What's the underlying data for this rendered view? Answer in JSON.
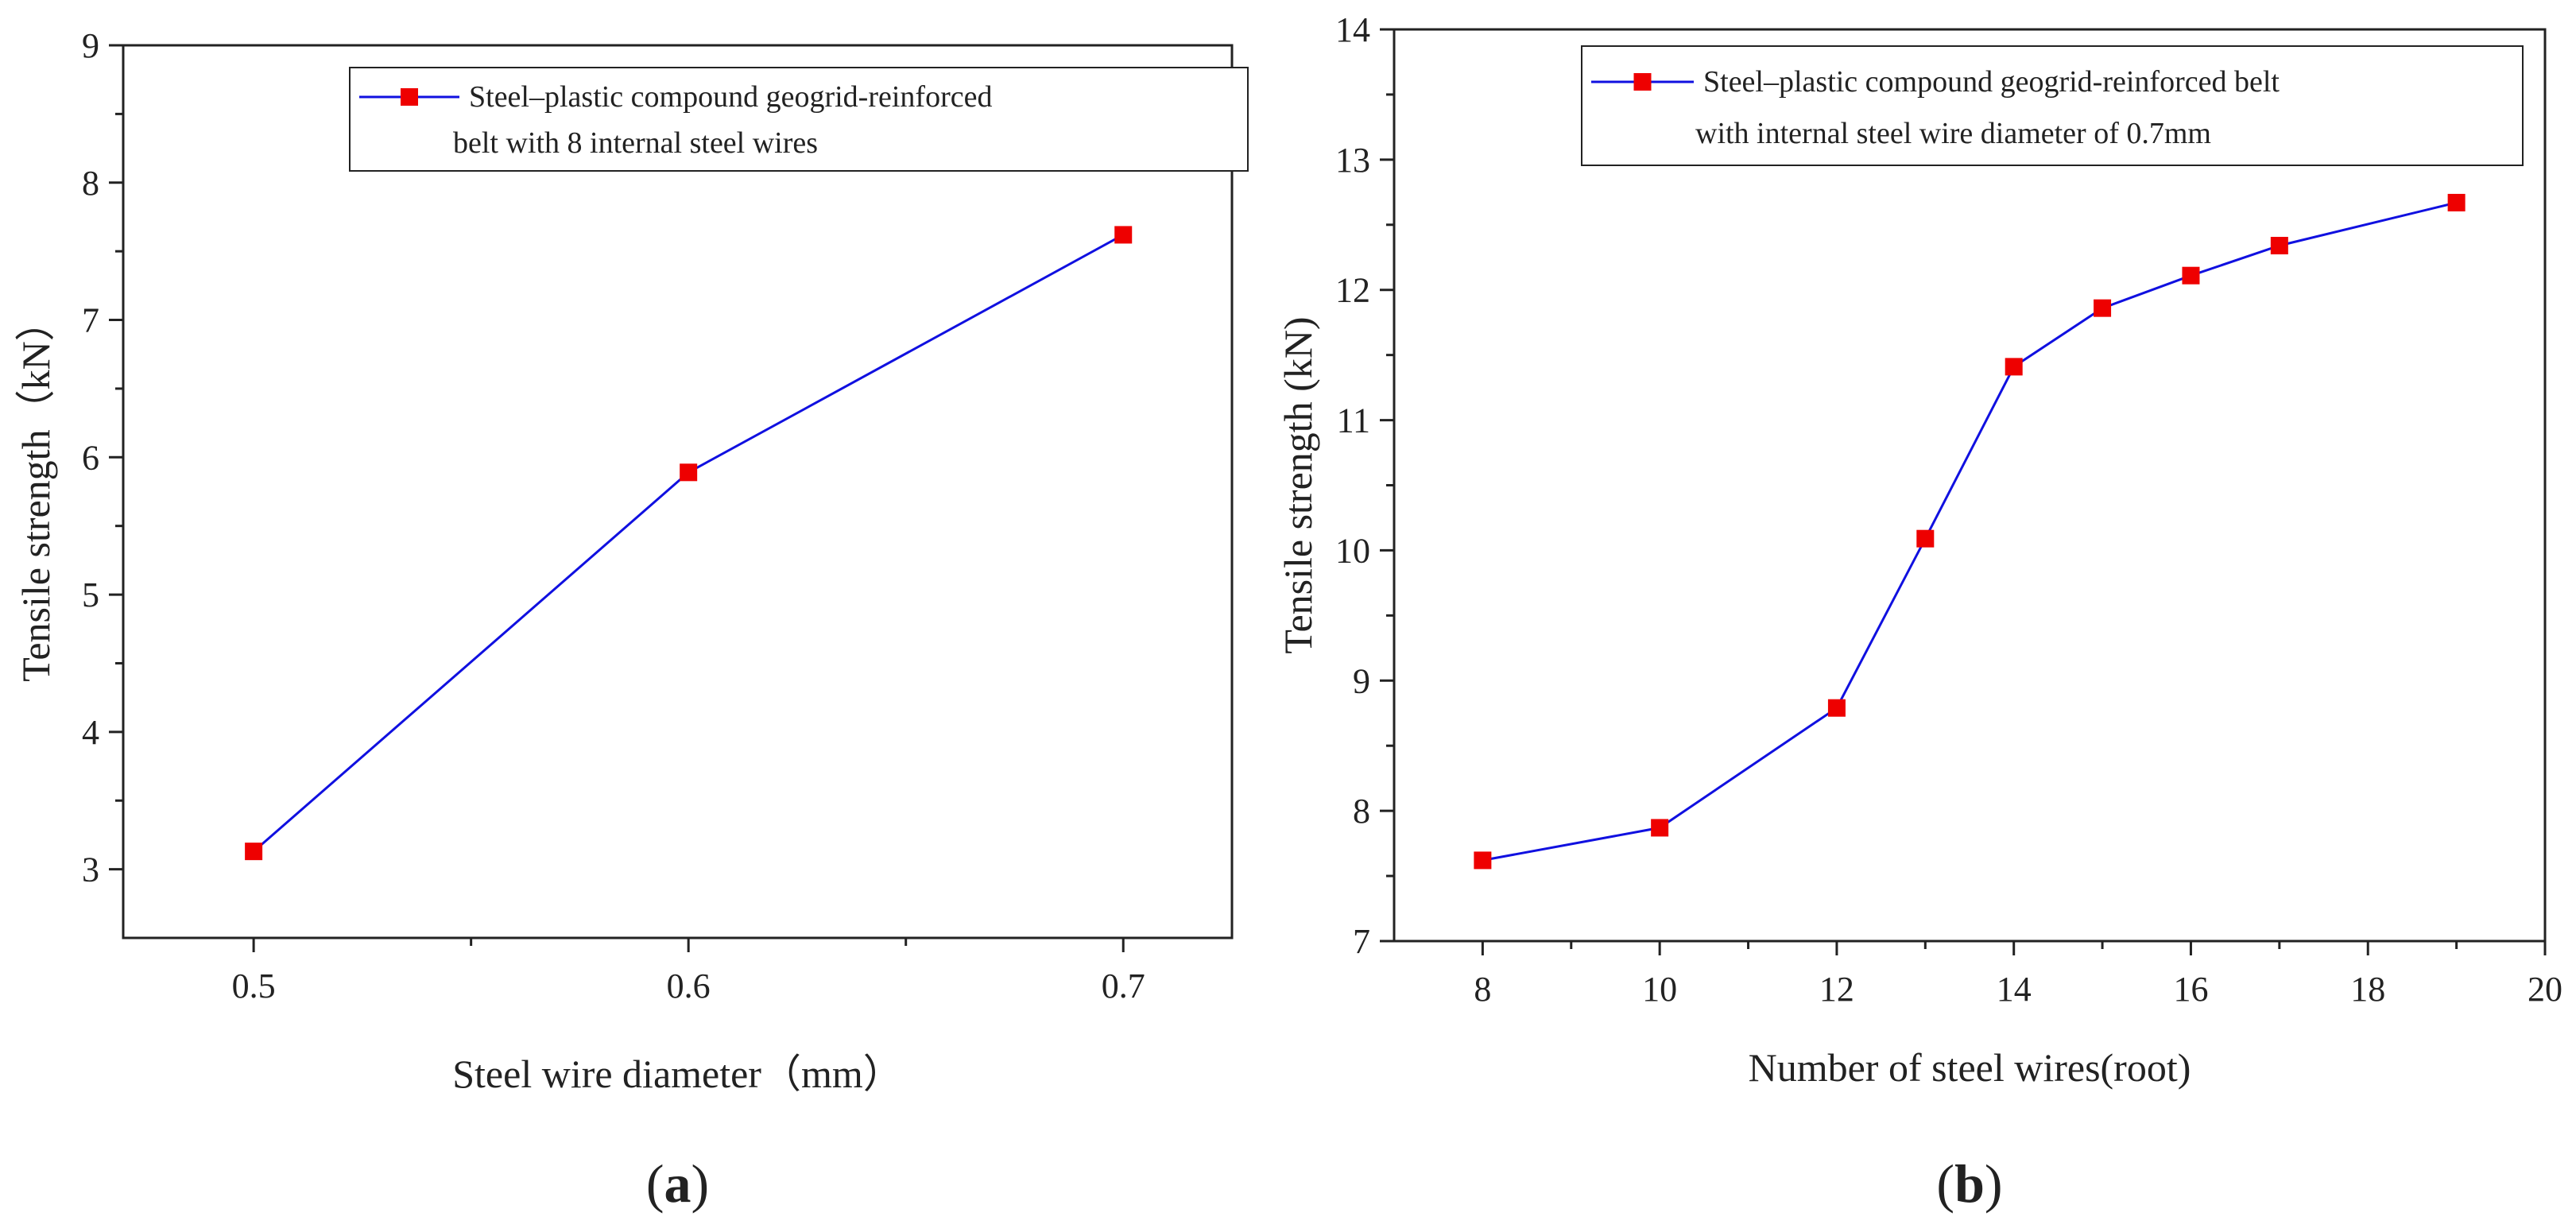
{
  "chart_data": [
    {
      "type": "line",
      "panel_label_open": "(",
      "panel_label": "a",
      "panel_label_close": ")",
      "xlabel": "Steel wire diameter（mm）",
      "ylabel": "Tensile strength（kN）",
      "xlim": [
        0.47,
        0.725
      ],
      "ylim": [
        2.5,
        9
      ],
      "xticks": [
        0.5,
        0.6,
        0.7
      ],
      "xtick_labels": [
        "0.5",
        "0.6",
        "0.7"
      ],
      "yticks": [
        3,
        4,
        5,
        6,
        7,
        8,
        9
      ],
      "ytick_labels": [
        "3",
        "4",
        "5",
        "6",
        "7",
        "8",
        "9"
      ],
      "legend": {
        "position": "top-right",
        "lines": [
          "Steel–plastic compound geogrid-reinforced",
          "belt with 8 internal steel wires"
        ]
      },
      "series": [
        {
          "name": "Steel–plastic compound geogrid-reinforced belt with 8 internal steel wires",
          "x": [
            0.5,
            0.6,
            0.7
          ],
          "y": [
            3.13,
            5.89,
            7.62
          ],
          "line_color": "#1010e0",
          "marker_color": "#ee0000"
        }
      ]
    },
    {
      "type": "line",
      "panel_label_open": "(",
      "panel_label": "b",
      "panel_label_close": ")",
      "xlabel": "Number of steel wires(root)",
      "ylabel": "Tensile strength (kN)",
      "xlim": [
        7,
        20
      ],
      "ylim": [
        7,
        14
      ],
      "xticks": [
        8,
        10,
        12,
        14,
        16,
        18,
        20
      ],
      "xtick_labels": [
        "8",
        "10",
        "12",
        "14",
        "16",
        "18",
        "20"
      ],
      "yticks": [
        7,
        8,
        9,
        10,
        11,
        12,
        13,
        14
      ],
      "ytick_labels": [
        "7",
        "8",
        "9",
        "10",
        "11",
        "12",
        "13",
        "14"
      ],
      "legend": {
        "position": "top-right",
        "lines": [
          "Steel–plastic compound geogrid-reinforced belt",
          "with internal steel wire diameter of 0.7mm"
        ]
      },
      "series": [
        {
          "name": "Steel–plastic compound geogrid-reinforced belt with internal steel wire diameter of 0.7mm",
          "x": [
            8,
            10,
            12,
            13,
            14,
            15,
            16,
            17,
            19
          ],
          "y": [
            7.62,
            7.87,
            8.79,
            10.09,
            11.41,
            11.86,
            12.11,
            12.34,
            12.67
          ],
          "line_color": "#1010e0",
          "marker_color": "#ee0000"
        }
      ]
    }
  ]
}
